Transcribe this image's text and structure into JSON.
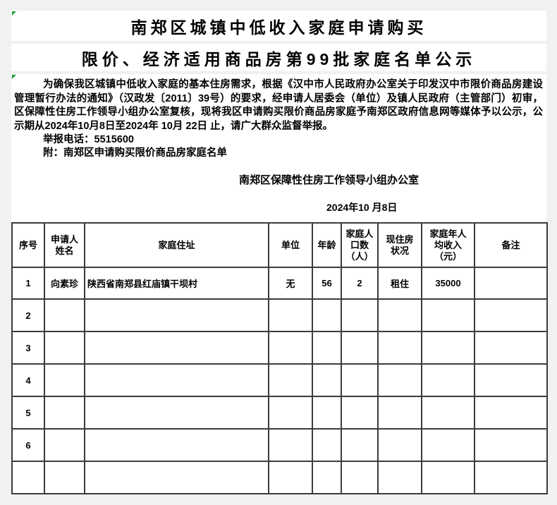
{
  "page": {
    "title_line1": "南郑区城镇中低收入家庭申请购买",
    "title_line2": "限价、经济适用商品房第99批家庭名单公示"
  },
  "notice": {
    "body": "为确保我区城镇中低收入家庭的基本住房需求，根据《汉中市人民政府办公室关于印发汉中市限价商品房建设管理暂行办法的通知》（汉政发〔2011〕39号）的要求，经申请人居委会（单位）及镇人民政府（主管部门）初审，区保障性住房工作领导小组办公室复核，现将我区申请购买限价商品房家庭予南郑区政府信息网等媒体予以公示，公示期从2024年10月8日至2024年 10月 22日 止，请广大群众监督举报。",
    "hotline_line": "举报电话：5515600",
    "attachment_line": "附：南郑区申请购买限价商品房家庭名单",
    "issuer": "南郑区保障性住房工作领导小组办公室",
    "date": "2024年10 月8日"
  },
  "table": {
    "headers": [
      "序号",
      "申请人\n姓名",
      "家庭住址",
      "单位",
      "年龄",
      "家庭人\n口数\n（人）",
      "现住房\n状况",
      "家庭年人\n均收入\n（元）",
      "备注"
    ],
    "rows": [
      {
        "seq": "1",
        "name": "向素珍",
        "address": "陕西省南郑县红庙镇干坝村",
        "unit": "无",
        "age": "56",
        "family_size": "2",
        "housing_status": "租住",
        "income": "35000",
        "remark": ""
      },
      {
        "seq": "2",
        "name": "",
        "address": "",
        "unit": "",
        "age": "",
        "family_size": "",
        "housing_status": "",
        "income": "",
        "remark": ""
      },
      {
        "seq": "3",
        "name": "",
        "address": "",
        "unit": "",
        "age": "",
        "family_size": "",
        "housing_status": "",
        "income": "",
        "remark": ""
      },
      {
        "seq": "4",
        "name": "",
        "address": "",
        "unit": "",
        "age": "",
        "family_size": "",
        "housing_status": "",
        "income": "",
        "remark": ""
      },
      {
        "seq": "5",
        "name": "",
        "address": "",
        "unit": "",
        "age": "",
        "family_size": "",
        "housing_status": "",
        "income": "",
        "remark": ""
      },
      {
        "seq": "6",
        "name": "",
        "address": "",
        "unit": "",
        "age": "",
        "family_size": "",
        "housing_status": "",
        "income": "",
        "remark": ""
      },
      {
        "seq": "",
        "name": "",
        "address": "",
        "unit": "",
        "age": "",
        "family_size": "",
        "housing_status": "",
        "income": "",
        "remark": ""
      }
    ]
  },
  "colors": {
    "canvas_bg": "#f1f1f1",
    "table_border": "#3b3b3b",
    "error_indicator_green": "#21a038"
  }
}
